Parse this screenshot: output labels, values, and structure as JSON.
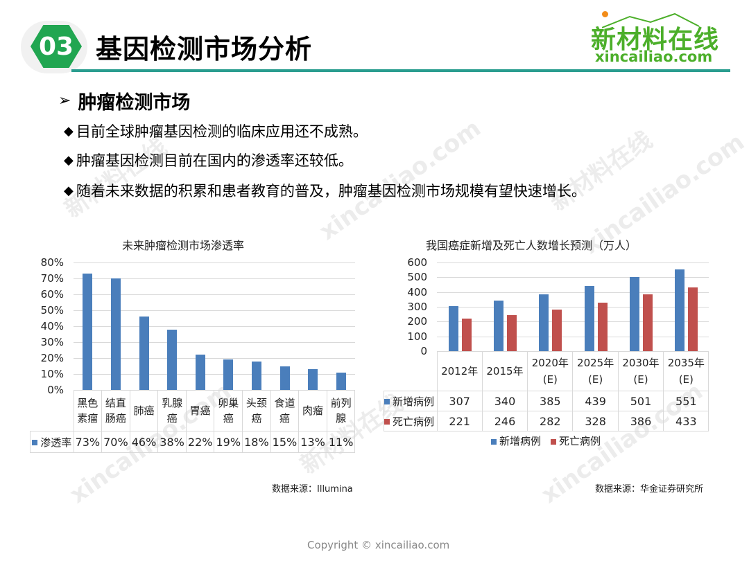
{
  "header": {
    "section_number": "03",
    "title": "基因检测市场分析",
    "logo_cn": "新材料在线",
    "logo_en": "xincailiao.com"
  },
  "section": {
    "arrow": "➢",
    "title": "肿瘤检测市场",
    "bullet_glyph": "◆",
    "bullets": [
      "目前全球肿瘤基因检测的临床应用还不成熟。",
      "肿瘤基因检测目前在国内的渗透率还较低。",
      "随着未来数据的积累和患者教育的普及，肿瘤基因检测市场规模有望快速增长。"
    ]
  },
  "chart_data": [
    {
      "type": "bar",
      "title": "未来肿瘤检测市场渗透率",
      "categories": [
        "黑色素瘤",
        "结直肠癌",
        "肺癌",
        "乳腺癌",
        "胃癌",
        "卵巢癌",
        "头颈癌",
        "食道癌",
        "肉瘤",
        "前列腺"
      ],
      "category_lines": [
        [
          "黑色",
          "素瘤"
        ],
        [
          "结直",
          "肠癌"
        ],
        [
          "肺癌"
        ],
        [
          "乳腺",
          "癌"
        ],
        [
          "胃癌"
        ],
        [
          "卵巢",
          "癌"
        ],
        [
          "头颈",
          "癌"
        ],
        [
          "食道",
          "癌"
        ],
        [
          "肉瘤"
        ],
        [
          "前列",
          "腺"
        ]
      ],
      "series": [
        {
          "name": "渗透率",
          "color": "#4a7ebb",
          "values": [
            73,
            70,
            46,
            38,
            22,
            19,
            18,
            15,
            13,
            11
          ]
        }
      ],
      "value_labels": [
        "73%",
        "70%",
        "46%",
        "38%",
        "22%",
        "19%",
        "18%",
        "15%",
        "13%",
        "11%"
      ],
      "yticks": [
        "80%",
        "70%",
        "60%",
        "50%",
        "40%",
        "30%",
        "20%",
        "10%",
        "0%"
      ],
      "ylim": [
        0,
        80
      ],
      "xlabel": "",
      "ylabel": "",
      "grid": true,
      "legend_position": "data-table",
      "source": "数据来源：Illumina"
    },
    {
      "type": "bar",
      "title": "我国癌症新增及死亡人数增长预测（万人）",
      "categories": [
        "2012年",
        "2015年",
        "2020年(E)",
        "2025年(E)",
        "2030年(E)",
        "2035年(E)"
      ],
      "category_lines": [
        [
          "2012年"
        ],
        [
          "2015年"
        ],
        [
          "2020年",
          "(E)"
        ],
        [
          "2025年",
          "(E)"
        ],
        [
          "2030年",
          "(E)"
        ],
        [
          "2035年",
          "(E)"
        ]
      ],
      "series": [
        {
          "name": "新增病例",
          "color": "#4a7ebb",
          "values": [
            307,
            340,
            385,
            439,
            501,
            551
          ]
        },
        {
          "name": "死亡病例",
          "color": "#c0504d",
          "values": [
            221,
            246,
            282,
            328,
            386,
            433
          ]
        }
      ],
      "yticks": [
        "600",
        "500",
        "400",
        "300",
        "200",
        "100",
        "0"
      ],
      "ylim": [
        0,
        600
      ],
      "xlabel": "",
      "ylabel": "",
      "grid": true,
      "legend_position": "bottom",
      "source": "数据来源：华金证券研究所"
    }
  ],
  "footer": {
    "copyright": "Copyright © xincailiao.com"
  },
  "watermark": {
    "cn": "新材料在线",
    "en": "xincailiao.com"
  }
}
